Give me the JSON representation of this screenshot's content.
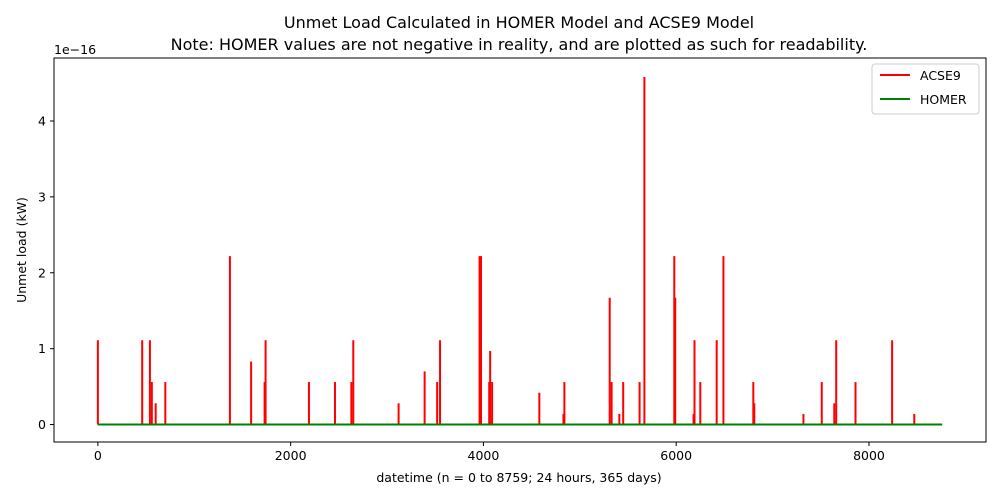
{
  "chart_data": {
    "type": "line",
    "title": "Unmet Load Calculated in HOMER Model and ACSE9 Model",
    "subtitle": "Note: HOMER values are not negative in reality, and are plotted as such for readability.",
    "xlabel": "datetime (n = 0 to 8759; 24 hours, 365 days)",
    "ylabel": "Unmet load (kW)",
    "y_offset_text": "1e−16",
    "xlim": [
      -455,
      9214
    ],
    "ylim": [
      -0.23,
      4.83
    ],
    "x_ticks": [
      0,
      2000,
      4000,
      6000,
      8000
    ],
    "y_ticks": [
      0,
      1,
      2,
      3,
      4
    ],
    "grid": false,
    "legend": {
      "placement": "top-right",
      "entries": [
        "ACSE9",
        "HOMER"
      ]
    },
    "series": [
      {
        "name": "ACSE9",
        "color": "#ff0000",
        "spikes": [
          [
            0,
            1.11
          ],
          [
            460,
            1.11
          ],
          [
            540,
            1.11
          ],
          [
            560,
            0.56
          ],
          [
            600,
            0.28
          ],
          [
            700,
            0.56
          ],
          [
            1370,
            2.22
          ],
          [
            1590,
            0.83
          ],
          [
            1730,
            0.56
          ],
          [
            1740,
            1.11
          ],
          [
            2190,
            0.56
          ],
          [
            2460,
            0.56
          ],
          [
            2630,
            0.56
          ],
          [
            2650,
            1.11
          ],
          [
            3120,
            0.28
          ],
          [
            3390,
            0.7
          ],
          [
            3520,
            0.56
          ],
          [
            3550,
            1.11
          ],
          [
            3960,
            2.22
          ],
          [
            3975,
            2.22
          ],
          [
            4060,
            0.56
          ],
          [
            4070,
            0.97
          ],
          [
            4090,
            0.56
          ],
          [
            4580,
            0.42
          ],
          [
            4830,
            0.14
          ],
          [
            4840,
            0.56
          ],
          [
            5310,
            1.67
          ],
          [
            5330,
            0.56
          ],
          [
            5410,
            0.14
          ],
          [
            5450,
            0.56
          ],
          [
            5620,
            0.56
          ],
          [
            5670,
            4.58
          ],
          [
            5980,
            2.22
          ],
          [
            5990,
            1.67
          ],
          [
            6180,
            0.14
          ],
          [
            6190,
            1.11
          ],
          [
            6250,
            0.56
          ],
          [
            6420,
            1.11
          ],
          [
            6490,
            2.22
          ],
          [
            6800,
            0.56
          ],
          [
            6810,
            0.28
          ],
          [
            7320,
            0.14
          ],
          [
            7510,
            0.56
          ],
          [
            7640,
            0.28
          ],
          [
            7660,
            1.11
          ],
          [
            7860,
            0.56
          ],
          [
            8240,
            1.11
          ],
          [
            8470,
            0.14
          ]
        ]
      },
      {
        "name": "HOMER",
        "color": "#008000",
        "x_range": [
          0,
          8759
        ],
        "value": 0
      }
    ]
  }
}
